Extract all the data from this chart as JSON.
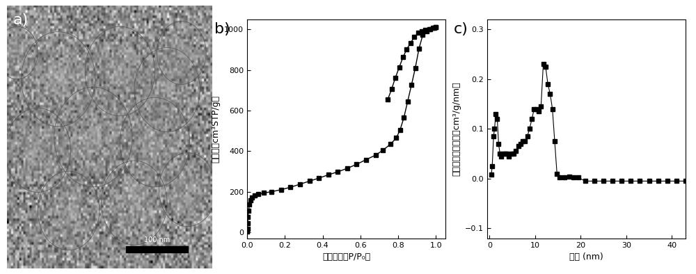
{
  "panel_b": {
    "ylabel": "吸附量（cm³STP/g）",
    "xlabel": "相对压力（P/P₀）",
    "xlim": [
      0.0,
      1.05
    ],
    "ylim": [
      -30,
      1050
    ],
    "yticks": [
      0,
      200,
      400,
      600,
      800,
      1000
    ],
    "xticks": [
      0.0,
      0.2,
      0.4,
      0.6,
      0.8,
      1.0
    ],
    "adsorption_x": [
      0.001,
      0.002,
      0.003,
      0.005,
      0.008,
      0.012,
      0.018,
      0.025,
      0.04,
      0.06,
      0.09,
      0.13,
      0.18,
      0.23,
      0.28,
      0.33,
      0.38,
      0.43,
      0.48,
      0.53,
      0.58,
      0.63,
      0.68,
      0.72,
      0.76,
      0.79,
      0.81,
      0.83,
      0.85,
      0.87,
      0.89,
      0.91,
      0.93,
      0.95,
      0.97,
      0.99,
      1.0
    ],
    "adsorption_y": [
      5,
      18,
      45,
      75,
      108,
      138,
      158,
      172,
      182,
      188,
      194,
      200,
      210,
      222,
      237,
      252,
      267,
      283,
      298,
      315,
      335,
      358,
      380,
      405,
      435,
      465,
      505,
      565,
      645,
      725,
      808,
      905,
      972,
      992,
      1002,
      1007,
      1010
    ],
    "desorption_x": [
      1.0,
      0.985,
      0.965,
      0.945,
      0.925,
      0.905,
      0.885,
      0.865,
      0.845,
      0.825,
      0.805,
      0.785,
      0.765,
      0.745
    ],
    "desorption_y": [
      1010,
      1007,
      1002,
      998,
      992,
      982,
      962,
      932,
      902,
      862,
      812,
      762,
      705,
      655
    ],
    "marker": "s",
    "markersize": 4,
    "color": "black",
    "linewidth": 1.0
  },
  "panel_c": {
    "ylabel": "孔隙率体积变化率（cm³/g/nm）",
    "xlabel": "孔径 (nm)",
    "xlim": [
      -0.5,
      43
    ],
    "ylim": [
      -0.12,
      0.32
    ],
    "yticks": [
      -0.1,
      0.0,
      0.1,
      0.2,
      0.3
    ],
    "xticks": [
      0,
      10,
      20,
      30,
      40
    ],
    "x": [
      0.4,
      0.6,
      0.9,
      1.1,
      1.4,
      1.7,
      2.0,
      2.3,
      2.6,
      3.0,
      3.4,
      3.8,
      4.3,
      4.8,
      5.3,
      5.8,
      6.3,
      6.8,
      7.3,
      7.8,
      8.3,
      8.8,
      9.3,
      9.8,
      10.3,
      10.8,
      11.3,
      11.8,
      12.3,
      12.8,
      13.3,
      13.8,
      14.3,
      14.8,
      15.3,
      16.5,
      17.5,
      18.5,
      19.5,
      21.0,
      23.0,
      25.0,
      27.0,
      29.0,
      31.0,
      33.0,
      35.0,
      37.0,
      39.0,
      41.0,
      43.0
    ],
    "y": [
      0.008,
      0.025,
      0.085,
      0.1,
      0.13,
      0.12,
      0.07,
      0.05,
      0.045,
      0.05,
      0.05,
      0.05,
      0.045,
      0.05,
      0.05,
      0.055,
      0.065,
      0.07,
      0.075,
      0.075,
      0.085,
      0.1,
      0.12,
      0.14,
      0.14,
      0.135,
      0.145,
      0.23,
      0.225,
      0.19,
      0.17,
      0.14,
      0.075,
      0.01,
      0.003,
      0.002,
      0.004,
      0.002,
      0.002,
      -0.005,
      -0.005,
      -0.005,
      -0.005,
      -0.005,
      -0.005,
      -0.005,
      -0.005,
      -0.005,
      -0.005,
      -0.005,
      -0.005
    ],
    "marker": "s",
    "markersize": 4,
    "color": "black",
    "linewidth": 0.8
  },
  "label_fontsize": 9,
  "tick_fontsize": 8,
  "panel_label_fontsize": 16,
  "background_color": "#ffffff",
  "sem_bg_color": "#909090",
  "sem_label_color": "white",
  "scale_bar_text": "100 nm",
  "panel_a_label": "a)",
  "panel_b_label": "b)",
  "panel_c_label": "c)"
}
